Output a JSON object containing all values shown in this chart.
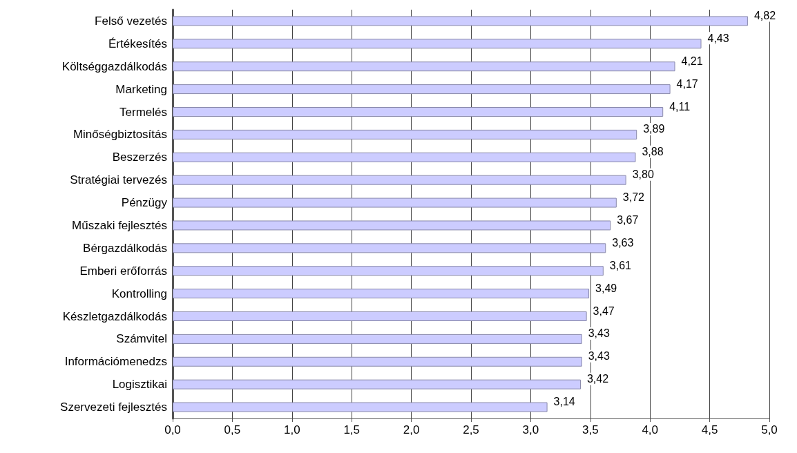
{
  "chart_data": {
    "type": "bar",
    "orientation": "horizontal",
    "categories": [
      "Felső vezetés",
      "Értékesítés",
      "Költséggazdálkodás",
      "Marketing",
      "Termelés",
      "Minőségbiztosítás",
      "Beszerzés",
      "Stratégiai tervezés",
      "Pénzügy",
      "Műszaki fejlesztés",
      "Bérgazdálkodás",
      "Emberi erőforrás",
      "Kontrolling",
      "Készletgazdálkodás",
      "Számvitel",
      "Információmenedzs",
      "Logisztikai",
      "Szervezeti fejlesztés"
    ],
    "values": [
      4.82,
      4.43,
      4.21,
      4.17,
      4.11,
      3.89,
      3.88,
      3.8,
      3.72,
      3.67,
      3.63,
      3.61,
      3.49,
      3.47,
      3.43,
      3.43,
      3.42,
      3.14
    ],
    "value_labels": [
      "4,82",
      "4,43",
      "4,21",
      "4,17",
      "4,11",
      "3,89",
      "3,88",
      "3,80",
      "3,72",
      "3,67",
      "3,63",
      "3,61",
      "3,49",
      "3,47",
      "3,43",
      "3,43",
      "3,42",
      "3,14"
    ],
    "color": "#ccccff",
    "xlim": [
      0,
      5
    ],
    "xticks": [
      {
        "value": 0,
        "label": "0,0"
      },
      {
        "value": 0.5,
        "label": "0,5"
      },
      {
        "value": 1,
        "label": "1,0"
      },
      {
        "value": 1.5,
        "label": "1,5"
      },
      {
        "value": 2,
        "label": "2,0"
      },
      {
        "value": 2.5,
        "label": "2,5"
      },
      {
        "value": 3,
        "label": "3,0"
      },
      {
        "value": 3.5,
        "label": "3,5"
      },
      {
        "value": 4,
        "label": "4,0"
      },
      {
        "value": 4.5,
        "label": "4,5"
      },
      {
        "value": 5,
        "label": "5,0"
      }
    ],
    "grid": "x"
  }
}
